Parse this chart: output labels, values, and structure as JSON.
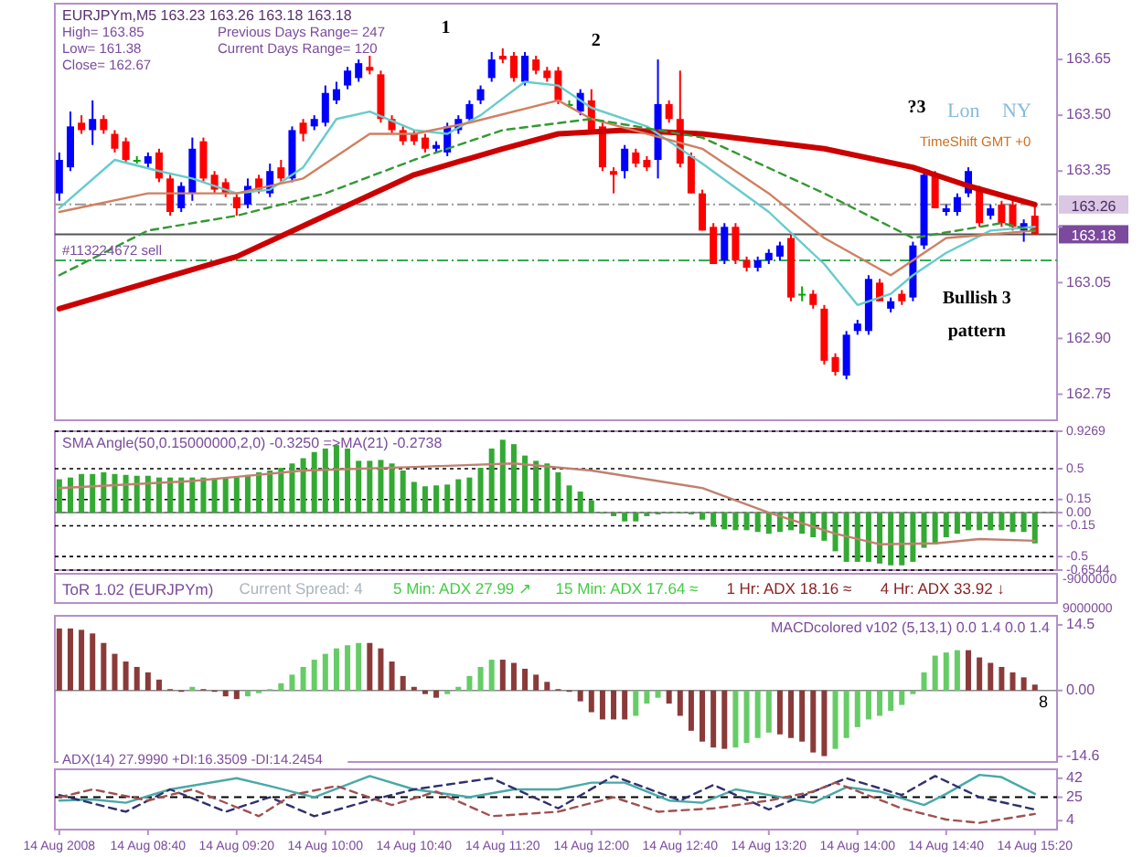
{
  "chart_data": [
    {
      "type": "candlestick",
      "title": "EURJPYm,M5  163.23 163.26 163.18 163.18",
      "x": [
        "2008-08-14T08:00",
        "2008-08-14T08:05",
        "2008-08-14T08:10",
        "2008-08-14T08:15",
        "2008-08-14T08:20",
        "2008-08-14T08:25",
        "2008-08-14T08:30",
        "2008-08-14T08:35",
        "2008-08-14T08:40",
        "2008-08-14T08:45",
        "2008-08-14T08:50",
        "2008-08-14T08:55",
        "2008-08-14T09:00",
        "2008-08-14T09:05",
        "2008-08-14T09:10",
        "2008-08-14T09:15",
        "2008-08-14T09:20",
        "2008-08-14T09:25",
        "2008-08-14T09:30",
        "2008-08-14T09:35",
        "2008-08-14T09:40",
        "2008-08-14T09:45",
        "2008-08-14T09:50",
        "2008-08-14T09:55",
        "2008-08-14T10:00",
        "2008-08-14T10:05",
        "2008-08-14T10:10",
        "2008-08-14T10:15",
        "2008-08-14T10:20",
        "2008-08-14T10:25",
        "2008-08-14T10:30",
        "2008-08-14T10:35",
        "2008-08-14T10:40",
        "2008-08-14T10:45",
        "2008-08-14T10:50",
        "2008-08-14T10:55",
        "2008-08-14T11:00",
        "2008-08-14T11:05",
        "2008-08-14T11:10",
        "2008-08-14T11:15",
        "2008-08-14T11:20",
        "2008-08-14T11:25",
        "2008-08-14T11:30",
        "2008-08-14T11:35",
        "2008-08-14T11:40",
        "2008-08-14T11:45",
        "2008-08-14T11:50",
        "2008-08-14T11:55",
        "2008-08-14T12:00",
        "2008-08-14T12:05",
        "2008-08-14T12:10",
        "2008-08-14T12:15",
        "2008-08-14T12:20",
        "2008-08-14T12:25",
        "2008-08-14T12:30",
        "2008-08-14T12:35",
        "2008-08-14T12:40",
        "2008-08-14T12:45",
        "2008-08-14T12:50",
        "2008-08-14T12:55",
        "2008-08-14T13:00",
        "2008-08-14T13:05",
        "2008-08-14T13:10",
        "2008-08-14T13:15",
        "2008-08-14T13:20",
        "2008-08-14T13:25",
        "2008-08-14T13:30",
        "2008-08-14T13:35",
        "2008-08-14T13:40",
        "2008-08-14T13:45",
        "2008-08-14T13:50",
        "2008-08-14T13:55",
        "2008-08-14T14:00",
        "2008-08-14T14:05",
        "2008-08-14T14:10",
        "2008-08-14T14:15",
        "2008-08-14T14:20",
        "2008-08-14T14:25",
        "2008-08-14T14:30",
        "2008-08-14T14:35",
        "2008-08-14T14:40",
        "2008-08-14T14:45",
        "2008-08-14T14:50",
        "2008-08-14T14:55",
        "2008-08-14T15:00",
        "2008-08-14T15:05",
        "2008-08-14T15:10",
        "2008-08-14T15:15",
        "2008-08-14T15:20"
      ],
      "ohlc": [
        [
          163.29,
          163.4,
          163.27,
          163.38
        ],
        [
          163.36,
          163.51,
          163.35,
          163.47
        ],
        [
          163.48,
          163.5,
          163.45,
          163.46
        ],
        [
          163.46,
          163.54,
          163.42,
          163.49
        ],
        [
          163.49,
          163.5,
          163.45,
          163.46
        ],
        [
          163.45,
          163.46,
          163.4,
          163.41
        ],
        [
          163.43,
          163.44,
          163.37,
          163.38
        ],
        [
          163.38,
          163.39,
          163.37,
          163.38
        ],
        [
          163.37,
          163.4,
          163.36,
          163.39
        ],
        [
          163.4,
          163.41,
          163.32,
          163.33
        ],
        [
          163.33,
          163.34,
          163.23,
          163.24
        ],
        [
          163.25,
          163.32,
          163.24,
          163.31
        ],
        [
          163.29,
          163.44,
          163.27,
          163.41
        ],
        [
          163.43,
          163.44,
          163.32,
          163.33
        ],
        [
          163.34,
          163.35,
          163.29,
          163.3
        ],
        [
          163.32,
          163.33,
          163.28,
          163.29
        ],
        [
          163.28,
          163.29,
          163.23,
          163.25
        ],
        [
          163.26,
          163.33,
          163.25,
          163.31
        ],
        [
          163.33,
          163.34,
          163.29,
          163.3
        ],
        [
          163.29,
          163.37,
          163.28,
          163.35
        ],
        [
          163.36,
          163.38,
          163.32,
          163.33
        ],
        [
          163.33,
          163.47,
          163.32,
          163.46
        ],
        [
          163.48,
          163.49,
          163.43,
          163.45
        ],
        [
          163.47,
          163.5,
          163.46,
          163.49
        ],
        [
          163.48,
          163.58,
          163.47,
          163.56
        ],
        [
          163.54,
          163.59,
          163.53,
          163.57
        ],
        [
          163.58,
          163.63,
          163.57,
          163.62
        ],
        [
          163.6,
          163.65,
          163.59,
          163.64
        ],
        [
          163.63,
          163.66,
          163.61,
          163.62
        ],
        [
          163.61,
          163.62,
          163.48,
          163.49
        ],
        [
          163.49,
          163.5,
          163.45,
          163.46
        ],
        [
          163.46,
          163.47,
          163.42,
          163.43
        ],
        [
          163.45,
          163.46,
          163.42,
          163.43
        ],
        [
          163.44,
          163.45,
          163.4,
          163.41
        ],
        [
          163.41,
          163.43,
          163.4,
          163.42
        ],
        [
          163.4,
          163.48,
          163.39,
          163.47
        ],
        [
          163.46,
          163.5,
          163.45,
          163.49
        ],
        [
          163.49,
          163.54,
          163.48,
          163.53
        ],
        [
          163.54,
          163.58,
          163.53,
          163.57
        ],
        [
          163.6,
          163.67,
          163.59,
          163.65
        ],
        [
          163.66,
          163.68,
          163.64,
          163.65
        ],
        [
          163.66,
          163.67,
          163.59,
          163.6
        ],
        [
          163.59,
          163.67,
          163.58,
          163.66
        ],
        [
          163.65,
          163.66,
          163.61,
          163.62
        ],
        [
          163.62,
          163.63,
          163.59,
          163.6
        ],
        [
          163.62,
          163.63,
          163.53,
          163.54
        ],
        [
          163.53,
          163.54,
          163.52,
          163.53
        ],
        [
          163.51,
          163.57,
          163.5,
          163.56
        ],
        [
          163.54,
          163.57,
          163.45,
          163.46
        ],
        [
          163.47,
          163.48,
          163.35,
          163.36
        ],
        [
          163.35,
          163.36,
          163.29,
          163.34
        ],
        [
          163.35,
          163.42,
          163.33,
          163.41
        ],
        [
          163.4,
          163.41,
          163.36,
          163.37
        ],
        [
          163.38,
          163.39,
          163.35,
          163.36
        ],
        [
          163.38,
          163.65,
          163.33,
          163.53
        ],
        [
          163.53,
          163.54,
          163.48,
          163.49
        ],
        [
          163.49,
          163.62,
          163.36,
          163.37
        ],
        [
          163.39,
          163.4,
          163.29,
          163.29
        ],
        [
          163.29,
          163.3,
          163.19,
          163.19
        ],
        [
          163.2,
          163.21,
          163.1,
          163.1
        ],
        [
          163.11,
          163.21,
          163.1,
          163.2
        ],
        [
          163.2,
          163.21,
          163.1,
          163.11
        ],
        [
          163.11,
          163.12,
          163.08,
          163.09
        ],
        [
          163.09,
          163.12,
          163.08,
          163.11
        ],
        [
          163.11,
          163.14,
          163.1,
          163.13
        ],
        [
          163.12,
          163.16,
          163.11,
          163.15
        ],
        [
          163.17,
          163.18,
          163.0,
          163.01
        ],
        [
          163.02,
          163.04,
          163.0,
          163.02
        ],
        [
          163.02,
          163.03,
          162.98,
          162.99
        ],
        [
          162.98,
          162.99,
          162.83,
          162.84
        ],
        [
          162.85,
          162.86,
          162.8,
          162.81
        ],
        [
          162.8,
          162.92,
          162.79,
          162.91
        ],
        [
          162.92,
          162.95,
          162.91,
          162.94
        ],
        [
          162.92,
          163.07,
          162.91,
          163.06
        ],
        [
          163.05,
          163.06,
          163.0,
          163.0
        ],
        [
          162.98,
          163.01,
          162.97,
          163.0
        ],
        [
          163.02,
          163.03,
          162.99,
          163.0
        ],
        [
          163.01,
          163.16,
          163.0,
          163.15
        ],
        [
          163.15,
          163.35,
          163.14,
          163.34
        ],
        [
          163.34,
          163.35,
          163.25,
          163.25
        ],
        [
          163.24,
          163.26,
          163.23,
          163.25
        ],
        [
          163.24,
          163.29,
          163.23,
          163.28
        ],
        [
          163.29,
          163.36,
          163.28,
          163.35
        ],
        [
          163.3,
          163.31,
          163.2,
          163.21
        ],
        [
          163.23,
          163.26,
          163.22,
          163.25
        ],
        [
          163.26,
          163.27,
          163.2,
          163.21
        ],
        [
          163.26,
          163.27,
          163.19,
          163.2
        ],
        [
          163.19,
          163.22,
          163.16,
          163.21
        ],
        [
          163.23,
          163.26,
          163.18,
          163.18
        ]
      ],
      "colors": [
        "#0000ff",
        "#0000ff",
        "#ff0000",
        "#0000ff",
        "#ff0000",
        "#ff0000",
        "#ff0000",
        "#00aa00",
        "#0000ff",
        "#ff0000",
        "#ff0000",
        "#0000ff",
        "#0000ff",
        "#ff0000",
        "#ff0000",
        "#ff0000",
        "#ff0000",
        "#0000ff",
        "#ff0000",
        "#0000ff",
        "#ff0000",
        "#0000ff",
        "#ff0000",
        "#0000ff",
        "#0000ff",
        "#0000ff",
        "#0000ff",
        "#0000ff",
        "#ff0000",
        "#ff0000",
        "#ff0000",
        "#ff0000",
        "#ff0000",
        "#ff0000",
        "#0000ff",
        "#0000ff",
        "#0000ff",
        "#0000ff",
        "#0000ff",
        "#0000ff",
        "#ff0000",
        "#ff0000",
        "#0000ff",
        "#ff0000",
        "#ff0000",
        "#ff0000",
        "#00aa00",
        "#0000ff",
        "#ff0000",
        "#ff0000",
        "#ff0000",
        "#0000ff",
        "#ff0000",
        "#ff0000",
        "#0000ff",
        "#ff0000",
        "#ff0000",
        "#ff0000",
        "#ff0000",
        "#ff0000",
        "#0000ff",
        "#ff0000",
        "#ff0000",
        "#0000ff",
        "#0000ff",
        "#0000ff",
        "#ff0000",
        "#00aa00",
        "#ff0000",
        "#ff0000",
        "#ff0000",
        "#0000ff",
        "#0000ff",
        "#0000ff",
        "#ff0000",
        "#0000ff",
        "#ff0000",
        "#0000ff",
        "#0000ff",
        "#ff0000",
        "#0000ff",
        "#0000ff",
        "#0000ff",
        "#ff0000",
        "#0000ff",
        "#ff0000",
        "#ff0000",
        "#0000ff",
        "#ff0000"
      ],
      "xlim": [
        "2008-08-14T07:58",
        "2008-08-14T15:30"
      ],
      "ylim": [
        162.68,
        163.8
      ],
      "yticks": [
        163.65,
        {
          "value": 163.5,
          "label": "163.50"
        },
        163.35,
        {
          "value": 163.2,
          "label": null
        },
        163.05,
        {
          "value": 162.9,
          "label": "162.90"
        },
        162.75
      ],
      "tick_labels": "y",
      "series": [
        {
          "type": "line",
          "color": "#cc0000",
          "x": [
            "2008-08-14T08:00",
            "2008-08-14T09:20",
            "2008-08-14T10:00",
            "2008-08-14T10:40",
            "2008-08-14T11:20",
            "2008-08-14T11:45",
            "2008-08-14T12:15",
            "2008-08-14T12:50",
            "2008-08-14T13:45",
            "2008-08-14T14:25",
            "2008-08-14T14:50",
            "2008-08-14T15:20"
          ],
          "values": [
            162.98,
            163.12,
            163.23,
            163.34,
            163.41,
            163.45,
            163.46,
            163.45,
            163.41,
            163.36,
            163.31,
            163.26
          ]
        },
        {
          "type": "line",
          "color": "#66cccc",
          "x": [
            "2008-08-14T08:00",
            "2008-08-14T08:25",
            "2008-08-14T08:45",
            "2008-08-14T09:00",
            "2008-08-14T09:20",
            "2008-08-14T09:35",
            "2008-08-14T09:50",
            "2008-08-14T10:05",
            "2008-08-14T10:20",
            "2008-08-14T10:40",
            "2008-08-14T10:55",
            "2008-08-14T11:10",
            "2008-08-14T11:30",
            "2008-08-14T11:45",
            "2008-08-14T12:00",
            "2008-08-14T12:25",
            "2008-08-14T12:50",
            "2008-08-14T13:20",
            "2008-08-14T13:45",
            "2008-08-14T14:00",
            "2008-08-14T14:15",
            "2008-08-14T14:25",
            "2008-08-14T14:40",
            "2008-08-14T15:00",
            "2008-08-14T15:20"
          ],
          "values": [
            163.25,
            163.38,
            163.35,
            163.33,
            163.29,
            163.3,
            163.36,
            163.49,
            163.51,
            163.46,
            163.45,
            163.5,
            163.59,
            163.58,
            163.52,
            163.47,
            163.37,
            163.24,
            163.1,
            162.99,
            163.02,
            163.07,
            163.13,
            163.19,
            163.2
          ]
        },
        {
          "type": "line",
          "color": "#d08060",
          "x": [
            "2008-08-14T08:00",
            "2008-08-14T08:40",
            "2008-08-14T09:20",
            "2008-08-14T09:50",
            "2008-08-14T10:20",
            "2008-08-14T10:40",
            "2008-08-14T11:05",
            "2008-08-14T11:45",
            "2008-08-14T12:00",
            "2008-08-14T12:50",
            "2008-08-14T13:20",
            "2008-08-14T13:45",
            "2008-08-14T14:15",
            "2008-08-14T14:40",
            "2008-08-14T15:20"
          ],
          "values": [
            163.24,
            163.29,
            163.29,
            163.33,
            163.45,
            163.45,
            163.48,
            163.54,
            163.49,
            163.41,
            163.29,
            163.17,
            163.07,
            163.17,
            163.19
          ]
        },
        {
          "type": "line",
          "color": "#339933",
          "line_style": "dashed",
          "x": [
            "2008-08-14T08:00",
            "2008-08-14T08:40",
            "2008-08-14T09:20",
            "2008-08-14T10:00",
            "2008-08-14T10:40",
            "2008-08-14T11:20",
            "2008-08-14T12:00",
            "2008-08-14T12:50",
            "2008-08-14T13:45",
            "2008-08-14T14:25",
            "2008-08-14T15:05",
            "2008-08-14T15:20"
          ],
          "values": [
            163.07,
            163.19,
            163.23,
            163.29,
            163.38,
            163.46,
            163.49,
            163.44,
            163.29,
            163.17,
            163.21,
            163.19
          ]
        }
      ],
      "ref_lines": [
        {
          "axis": "y",
          "value": 163.26,
          "label": "163.26",
          "color": "#999999",
          "line_style": "dashdot"
        },
        {
          "axis": "y",
          "value": 163.18,
          "label": "163.18",
          "color": "#555555",
          "line_style": "solid"
        },
        {
          "axis": "y",
          "value": 163.11,
          "label": "#113224672 sell",
          "color": "#33aa55",
          "line_style": "dashdot"
        }
      ],
      "annotations": [
        "High= 163.85",
        "Previous Days Range= 247",
        "Low= 161.38",
        "Current Days Range= 120",
        "Close= 162.67",
        "Lon",
        "NY",
        "TimeShift GMT +0",
        "1",
        "2",
        "?3",
        "Bullish 3 pattern"
      ]
    },
    {
      "type": "bar",
      "title": "SMA Angle(50,0.15000000,2,0) -0.3250  =>MA(21) -0.2738",
      "color": "#33aa33",
      "grid": "y",
      "x": [
        "2008-08-14T08:00",
        "2008-08-14T08:05",
        "2008-08-14T08:10",
        "2008-08-14T08:15",
        "2008-08-14T08:20",
        "2008-08-14T08:25",
        "2008-08-14T08:30",
        "2008-08-14T08:35",
        "2008-08-14T08:40",
        "2008-08-14T08:45",
        "2008-08-14T08:50",
        "2008-08-14T08:55",
        "2008-08-14T09:00",
        "2008-08-14T09:05",
        "2008-08-14T09:10",
        "2008-08-14T09:15",
        "2008-08-14T09:20",
        "2008-08-14T09:25",
        "2008-08-14T09:30",
        "2008-08-14T09:35",
        "2008-08-14T09:40",
        "2008-08-14T09:45",
        "2008-08-14T09:50",
        "2008-08-14T09:55",
        "2008-08-14T10:00",
        "2008-08-14T10:05",
        "2008-08-14T10:10",
        "2008-08-14T10:15",
        "2008-08-14T10:20",
        "2008-08-14T10:25",
        "2008-08-14T10:30",
        "2008-08-14T10:35",
        "2008-08-14T10:40",
        "2008-08-14T10:45",
        "2008-08-14T10:50",
        "2008-08-14T10:55",
        "2008-08-14T11:00",
        "2008-08-14T11:05",
        "2008-08-14T11:10",
        "2008-08-14T11:15",
        "2008-08-14T11:20",
        "2008-08-14T11:25",
        "2008-08-14T11:30",
        "2008-08-14T11:35",
        "2008-08-14T11:40",
        "2008-08-14T11:45",
        "2008-08-14T11:50",
        "2008-08-14T11:55",
        "2008-08-14T12:00",
        "2008-08-14T12:05",
        "2008-08-14T12:10",
        "2008-08-14T12:15",
        "2008-08-14T12:20",
        "2008-08-14T12:25",
        "2008-08-14T12:30",
        "2008-08-14T12:35",
        "2008-08-14T12:40",
        "2008-08-14T12:45",
        "2008-08-14T12:50",
        "2008-08-14T12:55",
        "2008-08-14T13:00",
        "2008-08-14T13:05",
        "2008-08-14T13:10",
        "2008-08-14T13:15",
        "2008-08-14T13:20",
        "2008-08-14T13:25",
        "2008-08-14T13:30",
        "2008-08-14T13:35",
        "2008-08-14T13:40",
        "2008-08-14T13:45",
        "2008-08-14T13:50",
        "2008-08-14T13:55",
        "2008-08-14T14:00",
        "2008-08-14T14:05",
        "2008-08-14T14:10",
        "2008-08-14T14:15",
        "2008-08-14T14:20",
        "2008-08-14T14:25",
        "2008-08-14T14:30",
        "2008-08-14T14:35",
        "2008-08-14T14:40",
        "2008-08-14T14:45",
        "2008-08-14T14:50",
        "2008-08-14T14:55",
        "2008-08-14T15:00",
        "2008-08-14T15:05",
        "2008-08-14T15:10",
        "2008-08-14T15:15",
        "2008-08-14T15:20"
      ],
      "values": [
        0.38,
        0.4,
        0.44,
        0.44,
        0.46,
        0.44,
        0.43,
        0.42,
        0.42,
        0.4,
        0.4,
        0.4,
        0.4,
        0.4,
        0.39,
        0.39,
        0.4,
        0.43,
        0.46,
        0.48,
        0.51,
        0.56,
        0.62,
        0.69,
        0.73,
        0.77,
        0.73,
        0.59,
        0.59,
        0.6,
        0.56,
        0.48,
        0.35,
        0.3,
        0.31,
        0.32,
        0.38,
        0.4,
        0.51,
        0.73,
        0.83,
        0.78,
        0.65,
        0.59,
        0.56,
        0.46,
        0.31,
        0.24,
        0.14,
        0.0,
        -0.04,
        -0.1,
        -0.1,
        -0.04,
        -0.02,
        -0.01,
        0.0,
        -0.02,
        -0.08,
        -0.16,
        -0.19,
        -0.2,
        -0.2,
        -0.22,
        -0.24,
        -0.22,
        -0.2,
        -0.24,
        -0.28,
        -0.32,
        -0.44,
        -0.56,
        -0.56,
        -0.56,
        -0.58,
        -0.6,
        -0.6,
        -0.56,
        -0.4,
        -0.36,
        -0.28,
        -0.24,
        -0.2,
        -0.2,
        -0.2,
        -0.2,
        -0.22,
        -0.22,
        -0.35
      ],
      "series": [
        {
          "type": "line",
          "color": "#c08070",
          "x": [
            "2008-08-14T08:00",
            "2008-08-14T09:00",
            "2008-08-14T09:50",
            "2008-08-14T10:40",
            "2008-08-14T11:25",
            "2008-08-14T12:00",
            "2008-08-14T12:50",
            "2008-08-14T13:20",
            "2008-08-14T13:50",
            "2008-08-14T14:10",
            "2008-08-14T14:35",
            "2008-08-14T14:55",
            "2008-08-14T15:20"
          ],
          "values": [
            0.28,
            0.36,
            0.48,
            0.52,
            0.56,
            0.48,
            0.28,
            0.0,
            -0.24,
            -0.36,
            -0.35,
            -0.3,
            -0.32
          ]
        }
      ],
      "xlim": [
        "2008-08-14T07:58",
        "2008-08-14T15:30"
      ],
      "ylim": [
        -0.6544,
        0.9269
      ],
      "yticks": [
        0.9269,
        0.5,
        0.15,
        {
          "value": 0,
          "label": "0.00"
        },
        -0.15,
        -0.5,
        -0.6544
      ],
      "tick_labels": "y"
    },
    {
      "type": "other",
      "title": "ToR 1.02 (EURJPYm)",
      "annotations": [
        "Current Spread: 4",
        "5 Min: ADX 27.99 ↗",
        "15 Min: ADX 17.64 ≈",
        "1 Hr: ADX 18.16 ≈",
        "4 Hr: ADX 33.92 ↓",
        "-9000000",
        "9000000"
      ]
    },
    {
      "type": "bar",
      "title": "MACDcolored v102 (5,13,1) 0.0 1.4 0.0 1.4",
      "x": [
        "2008-08-14T08:00",
        "2008-08-14T08:05",
        "2008-08-14T08:10",
        "2008-08-14T08:15",
        "2008-08-14T08:20",
        "2008-08-14T08:25",
        "2008-08-14T08:30",
        "2008-08-14T08:35",
        "2008-08-14T08:40",
        "2008-08-14T08:45",
        "2008-08-14T08:50",
        "2008-08-14T08:55",
        "2008-08-14T09:00",
        "2008-08-14T09:05",
        "2008-08-14T09:10",
        "2008-08-14T09:15",
        "2008-08-14T09:20",
        "2008-08-14T09:25",
        "2008-08-14T09:30",
        "2008-08-14T09:35",
        "2008-08-14T09:40",
        "2008-08-14T09:45",
        "2008-08-14T09:50",
        "2008-08-14T09:55",
        "2008-08-14T10:00",
        "2008-08-14T10:05",
        "2008-08-14T10:10",
        "2008-08-14T10:15",
        "2008-08-14T10:20",
        "2008-08-14T10:25",
        "2008-08-14T10:30",
        "2008-08-14T10:35",
        "2008-08-14T10:40",
        "2008-08-14T10:45",
        "2008-08-14T10:50",
        "2008-08-14T10:55",
        "2008-08-14T11:00",
        "2008-08-14T11:05",
        "2008-08-14T11:10",
        "2008-08-14T11:15",
        "2008-08-14T11:20",
        "2008-08-14T11:25",
        "2008-08-14T11:30",
        "2008-08-14T11:35",
        "2008-08-14T11:40",
        "2008-08-14T11:45",
        "2008-08-14T11:50",
        "2008-08-14T11:55",
        "2008-08-14T12:00",
        "2008-08-14T12:05",
        "2008-08-14T12:10",
        "2008-08-14T12:15",
        "2008-08-14T12:20",
        "2008-08-14T12:25",
        "2008-08-14T12:30",
        "2008-08-14T12:35",
        "2008-08-14T12:40",
        "2008-08-14T12:45",
        "2008-08-14T12:50",
        "2008-08-14T12:55",
        "2008-08-14T13:00",
        "2008-08-14T13:05",
        "2008-08-14T13:10",
        "2008-08-14T13:15",
        "2008-08-14T13:20",
        "2008-08-14T13:25",
        "2008-08-14T13:30",
        "2008-08-14T13:35",
        "2008-08-14T13:40",
        "2008-08-14T13:45",
        "2008-08-14T13:50",
        "2008-08-14T13:55",
        "2008-08-14T14:00",
        "2008-08-14T14:05",
        "2008-08-14T14:10",
        "2008-08-14T14:15",
        "2008-08-14T14:20",
        "2008-08-14T14:25",
        "2008-08-14T14:30",
        "2008-08-14T14:35",
        "2008-08-14T14:40",
        "2008-08-14T14:45",
        "2008-08-14T14:50",
        "2008-08-14T14:55",
        "2008-08-14T15:00",
        "2008-08-14T15:05",
        "2008-08-14T15:10",
        "2008-08-14T15:15",
        "2008-08-14T15:20"
      ],
      "values": [
        13.7,
        13.7,
        13.4,
        12.6,
        10.5,
        8.1,
        6.4,
        5.2,
        4.0,
        2.4,
        0.3,
        -0.3,
        0.8,
        0.3,
        -0.3,
        -1.3,
        -1.9,
        -1.3,
        -0.6,
        0.3,
        1.6,
        3.5,
        5.2,
        6.8,
        8.1,
        9.3,
        10.0,
        10.5,
        10.5,
        9.3,
        6.4,
        3.2,
        0.8,
        -0.8,
        -1.6,
        -0.8,
        0.8,
        3.2,
        5.2,
        6.8,
        6.8,
        6.1,
        4.8,
        3.5,
        1.9,
        0.3,
        -0.3,
        -2.4,
        -4.8,
        -6.4,
        -6.4,
        -6.4,
        -5.6,
        -2.9,
        -1.6,
        -2.9,
        -5.6,
        -8.9,
        -11.3,
        -12.6,
        -12.9,
        -12.6,
        -11.6,
        -10.5,
        -9.3,
        -9.7,
        -10.5,
        -11.3,
        -13.7,
        -14.5,
        -12.9,
        -10.5,
        -8.1,
        -6.4,
        -5.6,
        -4.5,
        -3.2,
        -0.8,
        4.0,
        7.7,
        8.4,
        8.9,
        8.9,
        7.3,
        6.1,
        5.2,
        4.0,
        2.9,
        1.3
      ],
      "colors": [
        "#8b3a3a",
        "#8b3a3a",
        "#8b3a3a",
        "#8b3a3a",
        "#8b3a3a",
        "#8b3a3a",
        "#8b3a3a",
        "#8b3a3a",
        "#8b3a3a",
        "#8b3a3a",
        "#8b3a3a",
        "#8b3a3a",
        "#66cc66",
        "#8b3a3a",
        "#8b3a3a",
        "#8b3a3a",
        "#8b3a3a",
        "#66cc66",
        "#66cc66",
        "#66cc66",
        "#66cc66",
        "#66cc66",
        "#66cc66",
        "#66cc66",
        "#66cc66",
        "#66cc66",
        "#66cc66",
        "#66cc66",
        "#8b3a3a",
        "#8b3a3a",
        "#8b3a3a",
        "#8b3a3a",
        "#8b3a3a",
        "#8b3a3a",
        "#8b3a3a",
        "#66cc66",
        "#66cc66",
        "#66cc66",
        "#66cc66",
        "#66cc66",
        "#8b3a3a",
        "#8b3a3a",
        "#8b3a3a",
        "#8b3a3a",
        "#8b3a3a",
        "#8b3a3a",
        "#8b3a3a",
        "#8b3a3a",
        "#8b3a3a",
        "#8b3a3a",
        "#8b3a3a",
        "#8b3a3a",
        "#66cc66",
        "#66cc66",
        "#66cc66",
        "#8b3a3a",
        "#8b3a3a",
        "#8b3a3a",
        "#8b3a3a",
        "#8b3a3a",
        "#8b3a3a",
        "#66cc66",
        "#66cc66",
        "#66cc66",
        "#66cc66",
        "#8b3a3a",
        "#8b3a3a",
        "#8b3a3a",
        "#8b3a3a",
        "#8b3a3a",
        "#66cc66",
        "#66cc66",
        "#66cc66",
        "#66cc66",
        "#66cc66",
        "#66cc66",
        "#66cc66",
        "#66cc66",
        "#66cc66",
        "#66cc66",
        "#66cc66",
        "#66cc66",
        "#8b3a3a",
        "#8b3a3a",
        "#8b3a3a",
        "#8b3a3a",
        "#8b3a3a",
        "#8b3a3a",
        "#8b3a3a"
      ],
      "xlim": [
        "2008-08-14T07:58",
        "2008-08-14T15:30"
      ],
      "ylim": [
        -15.8,
        16.5
      ],
      "yticks": [
        14.5,
        {
          "value": 0,
          "label": "0.00"
        },
        -14.6
      ],
      "tick_labels": "y",
      "annotations": [
        "8"
      ]
    },
    {
      "type": "line",
      "title": "ADX(14) 27.9990 +DI:16.3509 -DI:14.2454",
      "series": [
        {
          "color": "#4aa8a8",
          "x": [
            "2008-08-14T08:00",
            "2008-08-14T08:15",
            "2008-08-14T08:30",
            "2008-08-14T08:50",
            "2008-08-14T09:20",
            "2008-08-14T09:35",
            "2008-08-14T09:55",
            "2008-08-14T10:20",
            "2008-08-14T10:40",
            "2008-08-14T11:05",
            "2008-08-14T11:25",
            "2008-08-14T11:45",
            "2008-08-14T12:00",
            "2008-08-14T12:15",
            "2008-08-14T12:35",
            "2008-08-14T12:50",
            "2008-08-14T13:05",
            "2008-08-14T13:20",
            "2008-08-14T13:40",
            "2008-08-14T13:55",
            "2008-08-14T14:10",
            "2008-08-14T14:30",
            "2008-08-14T14:40",
            "2008-08-14T14:55",
            "2008-08-14T15:05",
            "2008-08-14T15:20"
          ],
          "values": [
            22,
            23,
            20,
            32,
            42,
            35,
            25,
            44,
            32,
            25,
            32,
            32,
            38,
            38,
            22,
            20,
            32,
            27,
            20,
            34,
            30,
            18,
            28,
            45,
            43,
            28
          ]
        },
        {
          "color": "#303070",
          "line_style": "dashed",
          "x": [
            "2008-08-14T08:00",
            "2008-08-14T08:30",
            "2008-08-14T08:50",
            "2008-08-14T09:15",
            "2008-08-14T09:35",
            "2008-08-14T09:55",
            "2008-08-14T10:20",
            "2008-08-14T10:40",
            "2008-08-14T11:15",
            "2008-08-14T11:45",
            "2008-08-14T12:10",
            "2008-08-14T12:40",
            "2008-08-14T12:55",
            "2008-08-14T13:20",
            "2008-08-14T13:55",
            "2008-08-14T14:20",
            "2008-08-14T14:35",
            "2008-08-14T14:55",
            "2008-08-14T15:20"
          ],
          "values": [
            27,
            12,
            32,
            12,
            25,
            8,
            22,
            32,
            42,
            15,
            44,
            22,
            36,
            14,
            42,
            27,
            44,
            25,
            14
          ]
        },
        {
          "color": "#a05050",
          "line_style": "dashed",
          "x": [
            "2008-08-14T08:00",
            "2008-08-14T08:15",
            "2008-08-14T08:40",
            "2008-08-14T09:00",
            "2008-08-14T09:30",
            "2008-08-14T09:45",
            "2008-08-14T10:05",
            "2008-08-14T10:30",
            "2008-08-14T10:50",
            "2008-08-14T11:15",
            "2008-08-14T11:45",
            "2008-08-14T12:10",
            "2008-08-14T12:30",
            "2008-08-14T12:55",
            "2008-08-14T13:20",
            "2008-08-14T13:40",
            "2008-08-14T13:50",
            "2008-08-14T14:20",
            "2008-08-14T14:40",
            "2008-08-14T14:55",
            "2008-08-14T15:20"
          ],
          "values": [
            25,
            32,
            22,
            32,
            8,
            27,
            35,
            18,
            30,
            8,
            12,
            25,
            12,
            15,
            22,
            30,
            38,
            15,
            5,
            2,
            10
          ]
        }
      ],
      "ref_lines": [
        {
          "axis": "y",
          "value": 25,
          "color": "#000000",
          "line_style": "dashed"
        }
      ],
      "xlim": [
        "2008-08-14T07:58",
        "2008-08-14T15:30"
      ],
      "ylim": [
        -4,
        50
      ],
      "yticks": [
        42,
        25,
        4
      ],
      "xticks": [
        {
          "value": "2008-08-14T08:00",
          "label": "14 Aug 2008"
        },
        {
          "value": "2008-08-14T08:40",
          "label": "14 Aug 08:40"
        },
        {
          "value": "2008-08-14T09:20",
          "label": "14 Aug 09:20"
        },
        {
          "value": "2008-08-14T10:00",
          "label": "14 Aug 10:00"
        },
        {
          "value": "2008-08-14T10:40",
          "label": "14 Aug 10:40"
        },
        {
          "value": "2008-08-14T11:20",
          "label": "14 Aug 11:20"
        },
        {
          "value": "2008-08-14T12:00",
          "label": "14 Aug 12:00"
        },
        {
          "value": "2008-08-14T12:40",
          "label": "14 Aug 12:40"
        },
        {
          "value": "2008-08-14T13:20",
          "label": "14 Aug 13:20"
        },
        {
          "value": "2008-08-14T14:00",
          "label": "14 Aug 14:00"
        },
        {
          "value": "2008-08-14T14:40",
          "label": "14 Aug 14:40"
        },
        {
          "value": "2008-08-14T15:20",
          "label": "14 Aug 15:20"
        }
      ]
    }
  ]
}
